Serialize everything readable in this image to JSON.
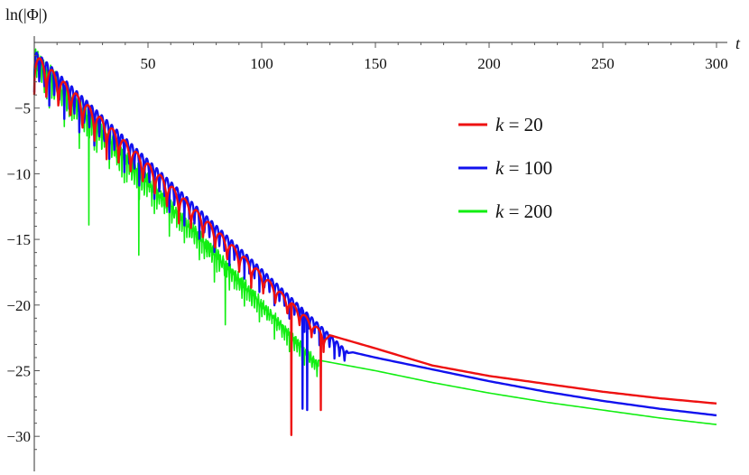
{
  "chart_data": {
    "type": "line",
    "title": "",
    "xlabel": "t",
    "ylabel": "ln(|Φ|)",
    "xlim": [
      0,
      300
    ],
    "ylim": [
      -31.5,
      0
    ],
    "x_ticks": [
      50,
      100,
      150,
      200,
      250,
      300
    ],
    "x_tick_labels": [
      "50",
      "100",
      "150",
      "200",
      "250",
      "300"
    ],
    "y_ticks": [
      -5,
      -10,
      -15,
      -20,
      -25,
      -30
    ],
    "y_tick_labels": [
      "−5",
      "−10",
      "−15",
      "−20",
      "−25",
      "−30"
    ],
    "grid": false,
    "legend_position": "right",
    "series": [
      {
        "name": "k = 20",
        "legend_var": "k",
        "legend_value": "20",
        "color": "#ee1111",
        "oscillation_end": 128,
        "tail": [
          [
            130,
            -22.3
          ],
          [
            150,
            -23.3
          ],
          [
            175,
            -24.6
          ],
          [
            200,
            -25.4
          ],
          [
            225,
            -26.0
          ],
          [
            250,
            -26.6
          ],
          [
            275,
            -27.1
          ],
          [
            300,
            -27.5
          ]
        ],
        "envelope_top_start": -0.8,
        "dips": [
          [
            113,
            -29.9
          ],
          [
            126,
            -28.0
          ]
        ],
        "period": 5.3
      },
      {
        "name": "k = 100",
        "legend_var": "k",
        "legend_value": "100",
        "color": "#1111ee",
        "oscillation_end": 138,
        "tail": [
          [
            140,
            -23.6
          ],
          [
            150,
            -24.0
          ],
          [
            175,
            -24.9
          ],
          [
            200,
            -25.8
          ],
          [
            225,
            -26.6
          ],
          [
            250,
            -27.3
          ],
          [
            275,
            -27.9
          ],
          [
            300,
            -28.4
          ]
        ],
        "envelope_top_start": -0.6,
        "dips": [
          [
            118,
            -27.9
          ],
          [
            120,
            -28.0
          ]
        ],
        "period": 2.2
      },
      {
        "name": "k = 200",
        "legend_var": "k",
        "legend_value": "200",
        "color": "#11ee11",
        "oscillation_end": 125,
        "tail": [
          [
            125,
            -24.2
          ],
          [
            150,
            -25.0
          ],
          [
            175,
            -25.9
          ],
          [
            200,
            -26.7
          ],
          [
            225,
            -27.4
          ],
          [
            250,
            -28.0
          ],
          [
            275,
            -28.6
          ],
          [
            300,
            -29.1
          ]
        ],
        "envelope_top_start": -0.3,
        "dips": [
          [
            24,
            -13.9
          ],
          [
            46,
            -16.2
          ],
          [
            84,
            -21.5
          ]
        ],
        "period": 1.1
      }
    ]
  }
}
